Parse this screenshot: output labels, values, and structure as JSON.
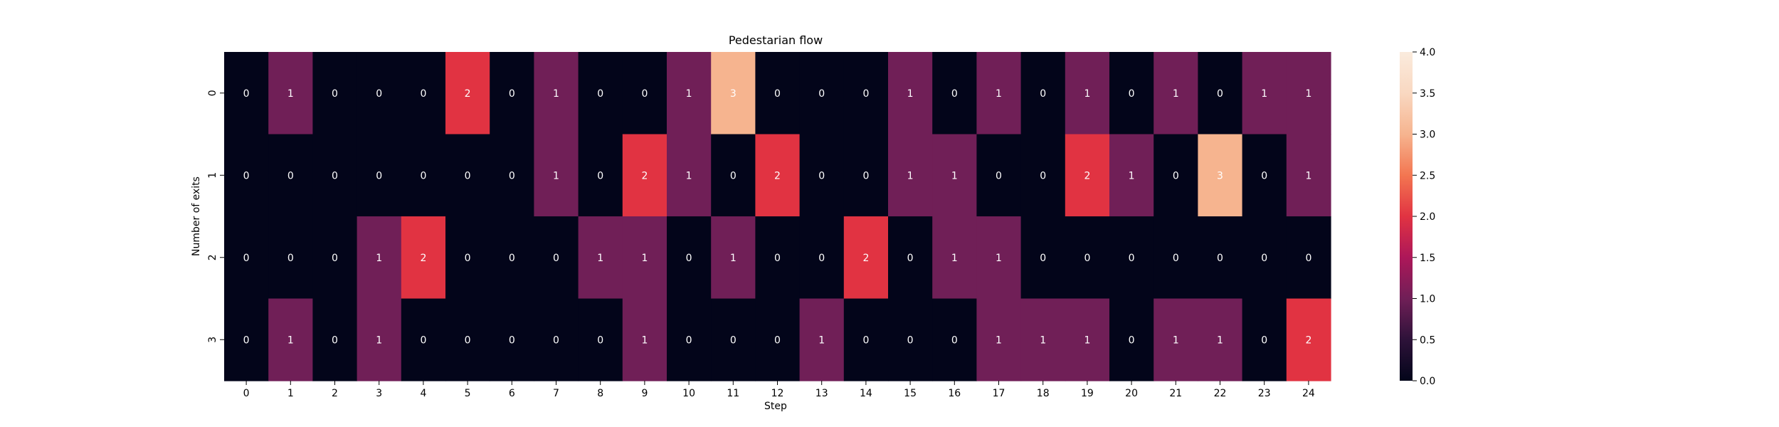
{
  "chart_data": {
    "type": "heatmap",
    "title": "Pedestarian flow",
    "xlabel": "Step",
    "ylabel": "Number of exits",
    "x_categories": [
      "0",
      "1",
      "2",
      "3",
      "4",
      "5",
      "6",
      "7",
      "8",
      "9",
      "10",
      "11",
      "12",
      "13",
      "14",
      "15",
      "16",
      "17",
      "18",
      "19",
      "20",
      "21",
      "22",
      "23",
      "24"
    ],
    "y_categories": [
      "0",
      "1",
      "2",
      "3"
    ],
    "values": [
      [
        0,
        1,
        0,
        0,
        0,
        2,
        0,
        1,
        0,
        0,
        1,
        3,
        0,
        0,
        0,
        1,
        0,
        1,
        0,
        1,
        0,
        1,
        0,
        1,
        1
      ],
      [
        0,
        0,
        0,
        0,
        0,
        0,
        0,
        1,
        0,
        2,
        1,
        0,
        2,
        0,
        0,
        1,
        1,
        0,
        0,
        2,
        1,
        0,
        3,
        0,
        1
      ],
      [
        0,
        0,
        0,
        1,
        2,
        0,
        0,
        0,
        1,
        1,
        0,
        1,
        0,
        0,
        2,
        0,
        1,
        1,
        0,
        0,
        0,
        0,
        0,
        0,
        0
      ],
      [
        0,
        1,
        0,
        1,
        0,
        0,
        0,
        0,
        0,
        1,
        0,
        0,
        0,
        1,
        0,
        0,
        0,
        1,
        1,
        1,
        0,
        1,
        1,
        0,
        2
      ]
    ],
    "value_range": [
      0,
      4
    ],
    "colorbar_ticks": [
      "0.0",
      "0.5",
      "1.0",
      "1.5",
      "2.0",
      "2.5",
      "3.0",
      "3.5",
      "4.0"
    ],
    "colormap": "rocket",
    "annotations": true,
    "colors": {
      "0": "#03051a",
      "1": "#701f57",
      "2": "#e13342",
      "3": "#f6b48f",
      "annot_text": "#ffffff"
    }
  }
}
